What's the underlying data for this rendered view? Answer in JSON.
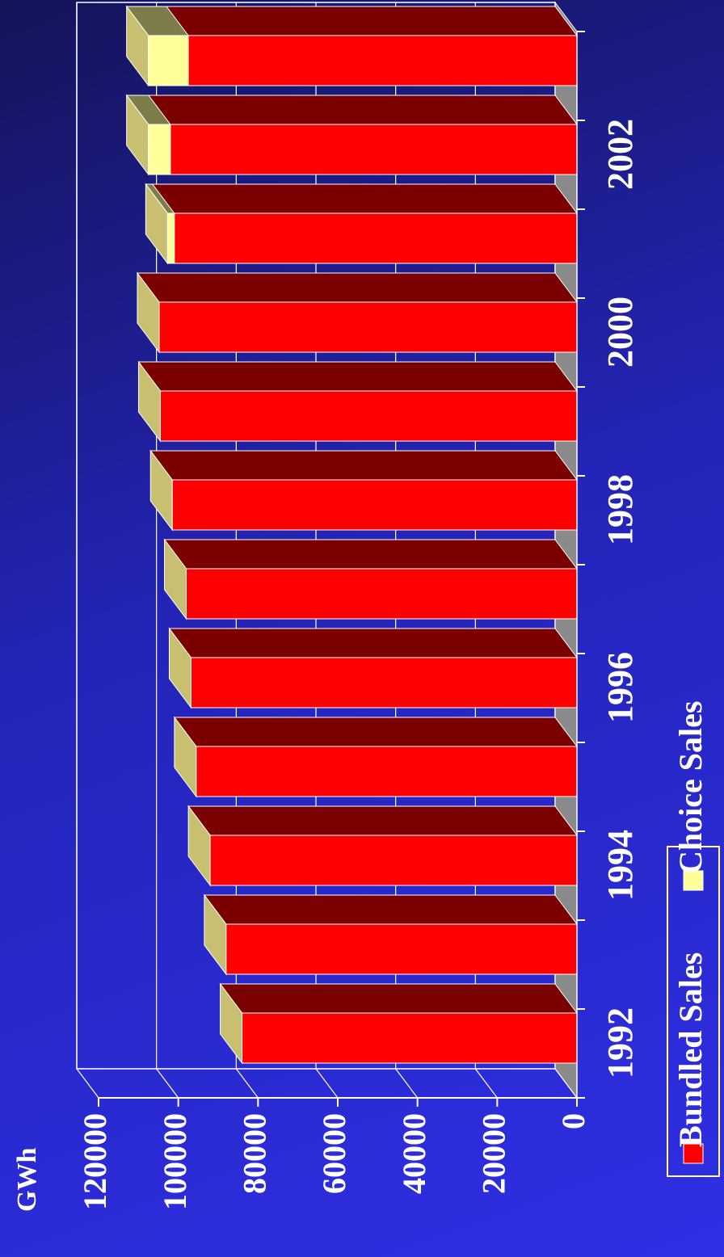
{
  "chart_data": {
    "type": "bar",
    "orientation": "horizontal-3d-stacked",
    "title": "",
    "xlabel": "",
    "ylabel": "GWh",
    "categories": [
      "1992",
      "1993",
      "1994",
      "1995",
      "1996",
      "1997",
      "1998",
      "1999",
      "2000",
      "2001",
      "2002",
      "2003"
    ],
    "tick_label_categories": [
      "1992",
      "1994",
      "1996",
      "1998",
      "2000",
      "2002"
    ],
    "series": [
      {
        "name": "Bundled Sales",
        "color": "#ff0000",
        "values": [
          84000,
          88000,
          92000,
          95500,
          96800,
          98000,
          101500,
          104500,
          104800,
          101000,
          102000,
          97500
        ]
      },
      {
        "name": "Choice Sales",
        "color": "#ffff99",
        "values": [
          0,
          0,
          0,
          0,
          0,
          0,
          0,
          0,
          0,
          1700,
          5500,
          10000
        ]
      }
    ],
    "value_axis": {
      "min": 0,
      "max": 120000,
      "ticks": [
        0,
        20000,
        40000,
        60000,
        80000,
        100000,
        120000
      ]
    },
    "grid": true,
    "legend": {
      "position": "bottom",
      "entries": [
        "Bundled Sales",
        "Choice Sales"
      ]
    }
  }
}
